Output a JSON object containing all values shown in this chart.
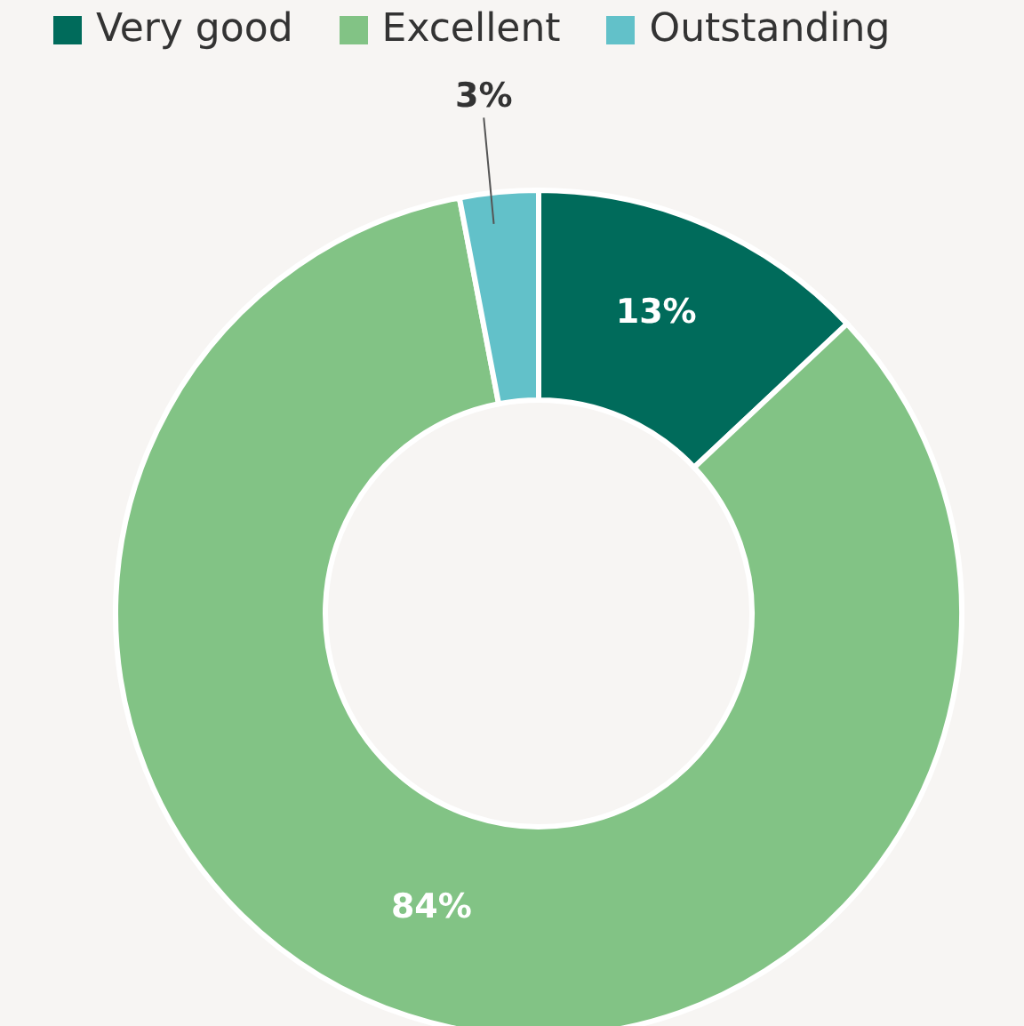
{
  "chart_data": {
    "type": "donut",
    "categories": [
      "Very good",
      "Excellent",
      "Outstanding"
    ],
    "values": [
      13,
      84,
      3
    ],
    "colors": [
      "#006b5b",
      "#82c385",
      "#62c1c9"
    ],
    "value_labels": [
      "13%",
      "84%",
      "3%"
    ],
    "legend": "top"
  }
}
